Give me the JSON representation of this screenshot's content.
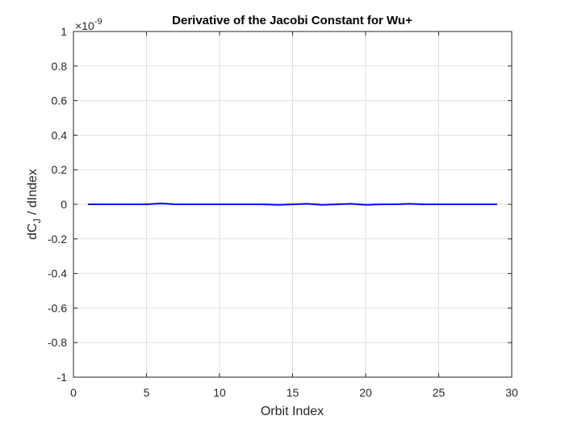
{
  "chart_data": {
    "type": "line",
    "title": "Derivative of the Jacobi Constant for Wu+",
    "xlabel": "Orbit Index",
    "ylabel": {
      "main": "dC",
      "sub": "J",
      "rest": " / dIndex"
    },
    "y_exponent": {
      "prefix": "×10",
      "power": "-9"
    },
    "xlim": [
      0,
      30
    ],
    "ylim": [
      -1,
      1
    ],
    "xticks": [
      0,
      5,
      10,
      15,
      20,
      25,
      30
    ],
    "xtick_labels": [
      "0",
      "5",
      "10",
      "15",
      "20",
      "25",
      "30"
    ],
    "yticks": [
      -1,
      -0.8,
      -0.6,
      -0.4,
      -0.2,
      0,
      0.2,
      0.4,
      0.6,
      0.8,
      1
    ],
    "ytick_labels": [
      "-1",
      "-0.8",
      "-0.6",
      "-0.4",
      "-0.2",
      "0",
      "0.2",
      "0.4",
      "0.6",
      "0.8",
      "1"
    ],
    "grid": true,
    "series": [
      {
        "color": "#0000ff",
        "x": [
          1,
          2,
          3,
          4,
          5,
          6,
          7,
          8,
          9,
          10,
          11,
          12,
          13,
          14,
          15,
          16,
          17,
          18,
          19,
          20,
          21,
          22,
          23,
          24,
          25,
          26,
          27,
          28,
          29
        ],
        "values": [
          0,
          0,
          0,
          0,
          0,
          0.005,
          0,
          0,
          0,
          0,
          0,
          0,
          0,
          -0.003,
          0,
          0.003,
          -0.003,
          0,
          0.003,
          -0.003,
          0,
          0,
          0.003,
          0,
          0,
          0,
          0,
          0,
          0
        ]
      }
    ]
  }
}
